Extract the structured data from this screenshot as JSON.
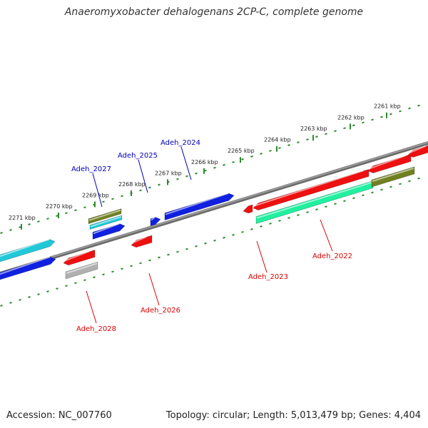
{
  "title": "Anaeromyxobacter dehalogenans 2CP-C, complete genome",
  "footer": {
    "accession": "Accession: NC_007760",
    "summary": "Topology: circular; Length: 5,013,479 bp; Genes: 4,404"
  },
  "colors": {
    "backbone": "#808080",
    "ruler": "#2e8b2e",
    "forward_label": "#0000bb",
    "reverse_label": "#dd0000",
    "blue": "#1020e0",
    "cyan": "#20c8d8",
    "olive": "#708020",
    "red": "#ee1010",
    "spring": "#20f0a0",
    "gray": "#b0b0b0"
  },
  "scale": {
    "unit": "kbp",
    "ticks": [
      {
        "label": "2261 kbp"
      },
      {
        "label": "2262 kbp"
      },
      {
        "label": "2263 kbp"
      },
      {
        "label": "2264 kbp"
      },
      {
        "label": "2265 kbp"
      },
      {
        "label": "2266 kbp"
      },
      {
        "label": "2267 kbp"
      },
      {
        "label": "2268 kbp"
      },
      {
        "label": "2269 kbp"
      },
      {
        "label": "2270 kbp"
      },
      {
        "label": "2271 kbp"
      }
    ]
  },
  "gene_labels": {
    "adeh_2024": "Adeh_2024",
    "adeh_2025": "Adeh_2025",
    "adeh_2027": "Adeh_2027",
    "adeh_2022": "Adeh_2022",
    "adeh_2023": "Adeh_2023",
    "adeh_2026": "Adeh_2026",
    "adeh_2028": "Adeh_2028"
  }
}
